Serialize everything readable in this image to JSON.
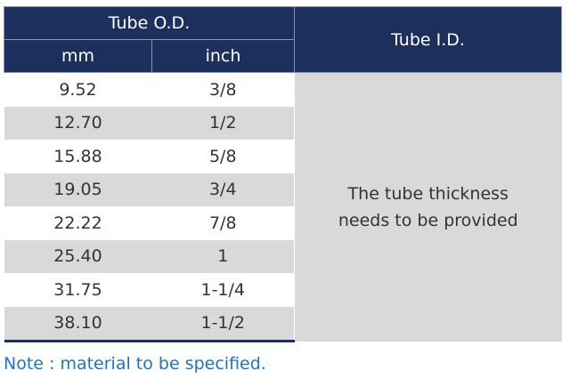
{
  "table": {
    "header": {
      "od": "Tube O.D.",
      "mm": "mm",
      "inch": "inch",
      "id": "Tube I.D."
    },
    "rows": [
      [
        "9.52",
        "3/8"
      ],
      [
        "12.70",
        "1/2"
      ],
      [
        "15.88",
        "5/8"
      ],
      [
        "19.05",
        "3/4"
      ],
      [
        "22.22",
        "7/8"
      ],
      [
        "25.40",
        "1"
      ],
      [
        "31.75",
        "1-1/4"
      ],
      [
        "38.10",
        "1-1/2"
      ]
    ],
    "id_note": "The tube thickness needs to be provided"
  },
  "note": "Note : material to be specified."
}
